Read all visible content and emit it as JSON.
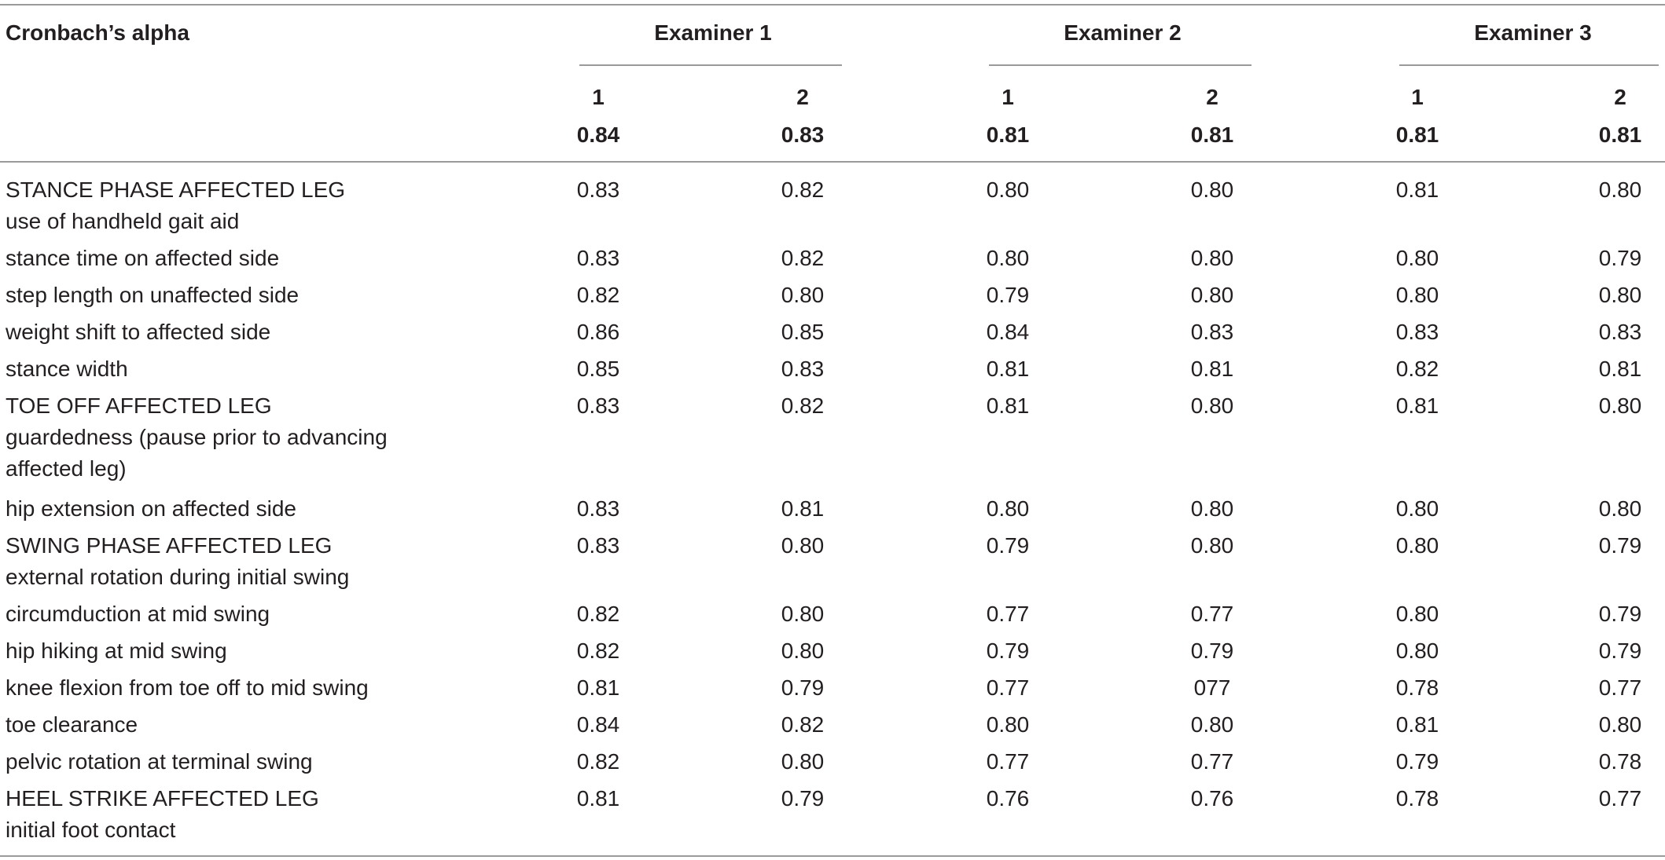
{
  "table": {
    "header_title": "Cronbach’s alpha",
    "groups": [
      "Examiner 1",
      "Examiner 2",
      "Examiner 3"
    ],
    "session_labels": [
      "1",
      "2",
      "1",
      "2",
      "1",
      "2"
    ],
    "overall_values": [
      "0.84",
      "0.83",
      "0.81",
      "0.81",
      "0.81",
      "0.81"
    ],
    "rows": [
      {
        "label": [
          "STANCE PHASE AFFECTED LEG",
          "use of handheld gait aid"
        ],
        "values": [
          "0.83",
          "0.82",
          "0.80",
          "0.80",
          "0.81",
          "0.80"
        ]
      },
      {
        "label": [
          "stance time on affected side"
        ],
        "values": [
          "0.83",
          "0.82",
          "0.80",
          "0.80",
          "0.80",
          "0.79"
        ]
      },
      {
        "label": [
          "step length on unaffected side"
        ],
        "values": [
          "0.82",
          "0.80",
          "0.79",
          "0.80",
          "0.80",
          "0.80"
        ]
      },
      {
        "label": [
          "weight shift to affected side"
        ],
        "values": [
          "0.86",
          "0.85",
          "0.84",
          "0.83",
          "0.83",
          "0.83"
        ]
      },
      {
        "label": [
          "stance width"
        ],
        "values": [
          "0.85",
          "0.83",
          "0.81",
          "0.81",
          "0.82",
          "0.81"
        ]
      },
      {
        "label": [
          "TOE OFF AFFECTED LEG",
          "guardedness (pause prior to advancing",
          "affected leg)"
        ],
        "values": [
          "0.83",
          "0.82",
          "0.81",
          "0.80",
          "0.81",
          "0.80"
        ]
      },
      {
        "label": [
          "hip extension on affected side"
        ],
        "values": [
          "0.83",
          "0.81",
          "0.80",
          "0.80",
          "0.80",
          "0.80"
        ]
      },
      {
        "label": [
          "SWING PHASE AFFECTED LEG",
          "external rotation during initial swing"
        ],
        "values": [
          "0.83",
          "0.80",
          "0.79",
          "0.80",
          "0.80",
          "0.79"
        ]
      },
      {
        "label": [
          "circumduction at mid swing"
        ],
        "values": [
          "0.82",
          "0.80",
          "0.77",
          "0.77",
          "0.80",
          "0.79"
        ]
      },
      {
        "label": [
          "hip hiking at mid swing"
        ],
        "values": [
          "0.82",
          "0.80",
          "0.79",
          "0.79",
          "0.80",
          "0.79"
        ]
      },
      {
        "label": [
          "knee flexion from toe off to mid swing"
        ],
        "values": [
          "0.81",
          "0.79",
          "0.77",
          "077",
          "0.78",
          "0.77"
        ]
      },
      {
        "label": [
          "toe clearance"
        ],
        "values": [
          "0.84",
          "0.82",
          "0.80",
          "0.80",
          "0.81",
          "0.80"
        ]
      },
      {
        "label": [
          "pelvic rotation at terminal swing"
        ],
        "values": [
          "0.82",
          "0.80",
          "0.77",
          "0.77",
          "0.79",
          "0.78"
        ]
      },
      {
        "label": [
          "HEEL STRIKE AFFECTED LEG",
          "initial foot contact"
        ],
        "values": [
          "0.81",
          "0.79",
          "0.76",
          "0.76",
          "0.78",
          "0.77"
        ]
      }
    ]
  }
}
